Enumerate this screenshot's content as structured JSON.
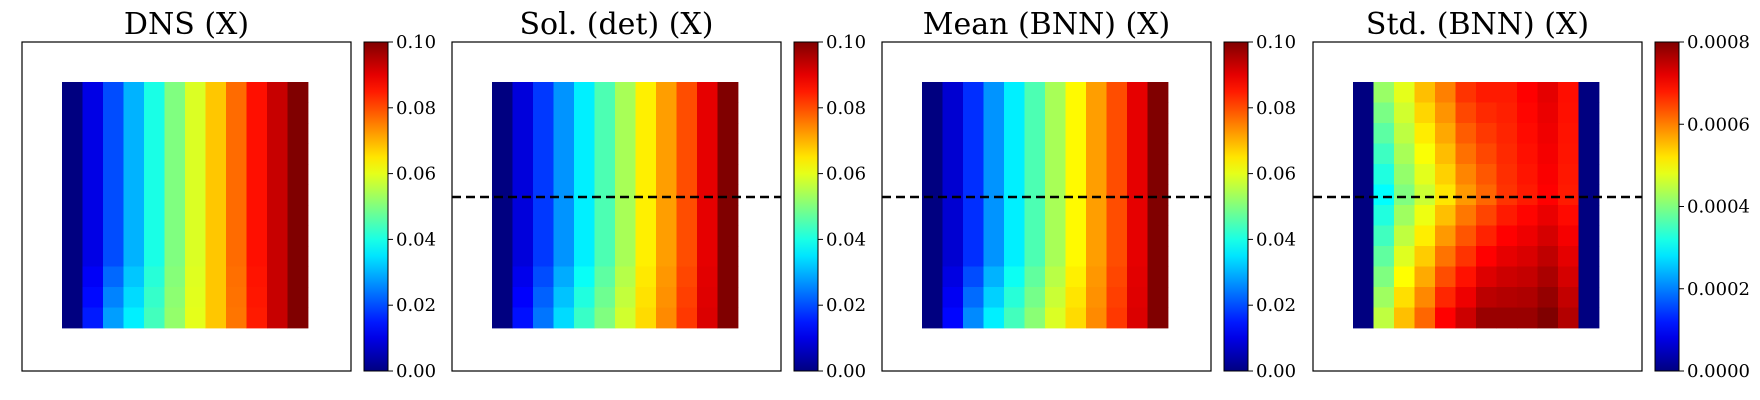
{
  "chart_data": [
    {
      "type": "heatmap",
      "title": "DNS (X)",
      "color_range": [
        0.0,
        0.1
      ],
      "colorbar_ticks": [
        "0.00",
        "0.02",
        "0.04",
        "0.06",
        "0.08",
        "0.10"
      ],
      "colormap": "jet",
      "grid_rows": 12,
      "grid_cols": 12,
      "row_values": [
        [
          0.0,
          0.01,
          0.02,
          0.03,
          0.04,
          0.05,
          0.059,
          0.068,
          0.077,
          0.086,
          0.093,
          0.1
        ]
      ],
      "last_row_values": [
        0.0,
        0.015,
        0.028,
        0.036,
        0.044,
        0.052,
        0.06,
        0.068,
        0.076,
        0.085,
        0.093,
        0.1
      ],
      "dashed_line": false
    },
    {
      "type": "heatmap",
      "title": "Sol. (det) (X)",
      "color_range": [
        0.0,
        0.1
      ],
      "colorbar_ticks": [
        "0.00",
        "0.02",
        "0.04",
        "0.06",
        "0.08",
        "0.10"
      ],
      "colormap": "jet",
      "grid_rows": 12,
      "grid_cols": 12,
      "row_values": [
        [
          0.0,
          0.009,
          0.018,
          0.027,
          0.036,
          0.045,
          0.054,
          0.064,
          0.072,
          0.08,
          0.09,
          0.1
        ]
      ],
      "last_row_values": [
        0.0,
        0.014,
        0.024,
        0.034,
        0.043,
        0.05,
        0.058,
        0.066,
        0.074,
        0.082,
        0.091,
        0.1
      ],
      "dashed_line": true
    },
    {
      "type": "heatmap",
      "title": "Mean (BNN) (X)",
      "color_range": [
        0.0,
        0.1
      ],
      "colorbar_ticks": [
        "0.00",
        "0.02",
        "0.04",
        "0.06",
        "0.08",
        "0.10"
      ],
      "colormap": "jet",
      "grid_rows": 12,
      "grid_cols": 12,
      "row_values": [
        [
          0.0,
          0.008,
          0.017,
          0.027,
          0.036,
          0.045,
          0.054,
          0.063,
          0.072,
          0.08,
          0.09,
          0.1
        ]
      ],
      "last_row_values": [
        0.0,
        0.013,
        0.026,
        0.036,
        0.044,
        0.051,
        0.059,
        0.066,
        0.074,
        0.082,
        0.091,
        0.1
      ],
      "dashed_line": true
    },
    {
      "type": "heatmap",
      "title": "Std. (BNN) (X)",
      "color_range": [
        0.0,
        0.0008
      ],
      "colorbar_ticks": [
        "0.0000",
        "0.0002",
        "0.0004",
        "0.0006",
        "0.0008"
      ],
      "colormap": "jet",
      "grid_rows": 12,
      "grid_cols": 12,
      "top_row_values": [
        0.0,
        0.00042,
        0.00048,
        0.00055,
        0.0006,
        0.00066,
        0.00068,
        0.00068,
        0.0007,
        0.00072,
        0.00069,
        0.0
      ],
      "last_row_values": [
        0.0,
        0.00045,
        0.00055,
        0.00062,
        0.0007,
        0.00074,
        0.00078,
        0.00078,
        0.00078,
        0.0008,
        0.00076,
        0.0
      ],
      "mid_row_values": [
        0.0,
        0.0003,
        0.0004,
        0.00046,
        0.00052,
        0.00058,
        0.00062,
        0.00066,
        0.00068,
        0.0007,
        0.00068,
        0.0
      ],
      "dashed_line": true
    }
  ]
}
